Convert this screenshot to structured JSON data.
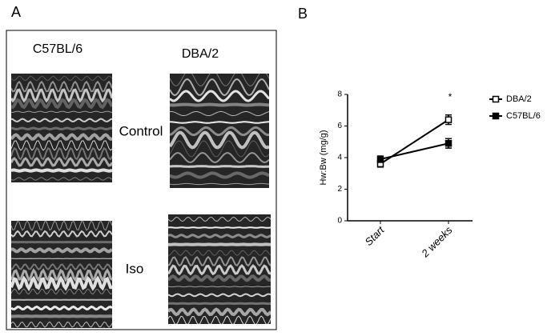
{
  "panel_a": {
    "label": "A",
    "columns": [
      "C57BL/6",
      "DBA/2"
    ],
    "rows": [
      "Control",
      "Iso"
    ]
  },
  "chart_data": {
    "type": "line",
    "panel_label": "B",
    "y_label": "Hw:Bw (mg/g)",
    "categories": [
      "Start",
      "2 weeks"
    ],
    "series": [
      {
        "name": "DBA/2",
        "color": "#000000",
        "marker": "open",
        "values": [
          3.6,
          6.4
        ],
        "errors": [
          0.2,
          0.3
        ]
      },
      {
        "name": "C57BL/6",
        "color": "#000000",
        "marker": "filled",
        "values": [
          3.9,
          4.9
        ],
        "errors": [
          0.2,
          0.3
        ]
      }
    ],
    "ylim": [
      0,
      8
    ],
    "yticks": [
      0,
      2,
      4,
      6,
      8
    ],
    "grid": false,
    "legend": "right",
    "annotation": "*"
  }
}
